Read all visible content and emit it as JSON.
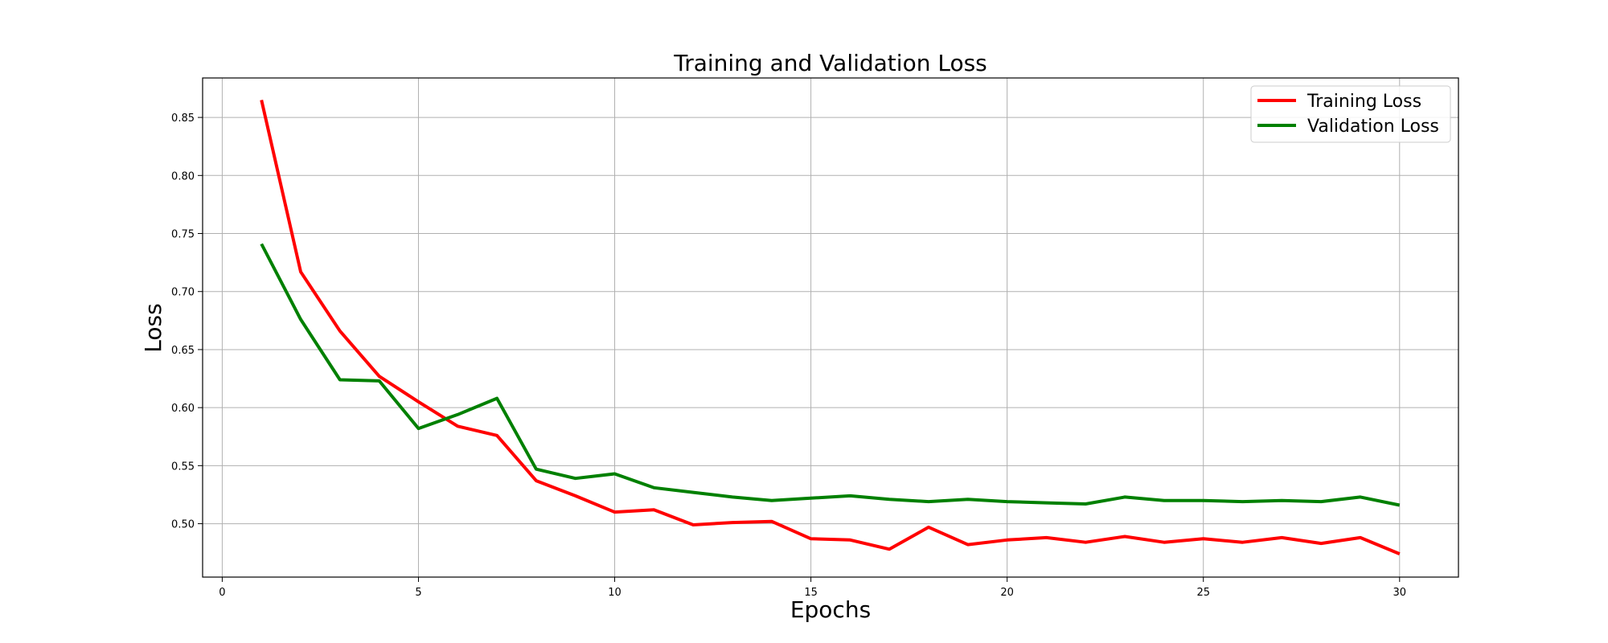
{
  "chart_data": {
    "type": "line",
    "title": "Training and Validation Loss",
    "xlabel": "Epochs",
    "ylabel": "Loss",
    "xlim": [
      -0.5,
      31.5
    ],
    "ylim": [
      0.454,
      0.884
    ],
    "x_ticks": [
      0,
      5,
      10,
      15,
      20,
      25,
      30
    ],
    "y_ticks": [
      0.5,
      0.55,
      0.6,
      0.65,
      0.7,
      0.75,
      0.8,
      0.85
    ],
    "grid": true,
    "legend_position": "top-right",
    "x": [
      1,
      2,
      3,
      4,
      5,
      6,
      7,
      8,
      9,
      10,
      11,
      12,
      13,
      14,
      15,
      16,
      17,
      18,
      19,
      20,
      21,
      22,
      23,
      24,
      25,
      26,
      27,
      28,
      29,
      30
    ],
    "series": [
      {
        "name": "Training Loss",
        "color": "#ff0000",
        "values": [
          0.865,
          0.717,
          0.666,
          0.627,
          0.605,
          0.584,
          0.576,
          0.537,
          0.524,
          0.51,
          0.512,
          0.499,
          0.501,
          0.502,
          0.487,
          0.486,
          0.478,
          0.497,
          0.482,
          0.486,
          0.488,
          0.484,
          0.489,
          0.484,
          0.487,
          0.484,
          0.488,
          0.483,
          0.488,
          0.474
        ]
      },
      {
        "name": "Validation Loss",
        "color": "#008000",
        "values": [
          0.741,
          0.676,
          0.624,
          0.623,
          0.582,
          0.594,
          0.608,
          0.547,
          0.539,
          0.543,
          0.531,
          0.527,
          0.523,
          0.52,
          0.522,
          0.524,
          0.521,
          0.519,
          0.521,
          0.519,
          0.518,
          0.517,
          0.523,
          0.52,
          0.52,
          0.519,
          0.52,
          0.519,
          0.523,
          0.516
        ]
      }
    ]
  }
}
